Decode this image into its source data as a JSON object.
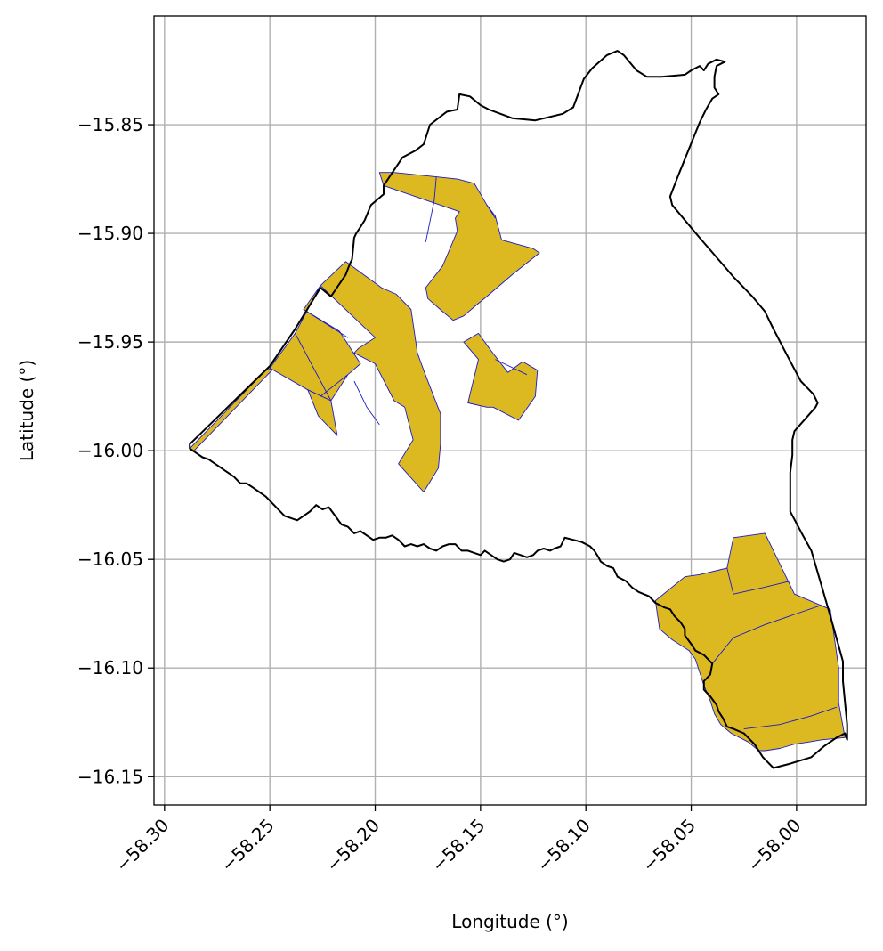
{
  "chart_data": {
    "type": "map",
    "title": "",
    "xlabel": "Longitude (°)",
    "ylabel": "Latitude (°)",
    "xlim": [
      -58.305,
      -57.967
    ],
    "ylim": [
      -16.163,
      -15.8
    ],
    "x_ticks": [
      {
        "value": -58.3,
        "label": "−58.30"
      },
      {
        "value": -58.25,
        "label": "−58.25"
      },
      {
        "value": -58.2,
        "label": "−58.20"
      },
      {
        "value": -58.15,
        "label": "−58.15"
      },
      {
        "value": -58.1,
        "label": "−58.10"
      },
      {
        "value": -58.05,
        "label": "−58.05"
      },
      {
        "value": -58.0,
        "label": "−58.00"
      }
    ],
    "y_ticks": [
      {
        "value": -15.85,
        "label": "−15.85"
      },
      {
        "value": -15.9,
        "label": "−15.90"
      },
      {
        "value": -15.95,
        "label": "−15.95"
      },
      {
        "value": -16.0,
        "label": "−16.00"
      },
      {
        "value": -16.05,
        "label": "−16.05"
      },
      {
        "value": -16.1,
        "label": "−16.10"
      },
      {
        "value": -16.15,
        "label": "−16.15"
      }
    ],
    "grid": true,
    "colors": {
      "boundary": "#000000",
      "parcel_fill": "#DDB921",
      "parcel_edge": "#1a1acc",
      "grid": "#b0b0b0"
    },
    "boundary": [
      [
        -58.288,
        -15.997
      ],
      [
        -58.25,
        -15.961
      ],
      [
        -58.238,
        -15.944
      ],
      [
        -58.226,
        -15.925
      ],
      [
        -58.221,
        -15.929
      ],
      [
        -58.214,
        -15.919
      ],
      [
        -58.212,
        -15.914
      ],
      [
        -58.211,
        -15.912
      ],
      [
        -58.21,
        -15.902
      ],
      [
        -58.209,
        -15.9
      ],
      [
        -58.207,
        -15.897
      ],
      [
        -58.205,
        -15.894
      ],
      [
        -58.202,
        -15.887
      ],
      [
        -58.196,
        -15.882
      ],
      [
        -58.196,
        -15.878
      ],
      [
        -58.187,
        -15.865
      ],
      [
        -58.181,
        -15.862
      ],
      [
        -58.177,
        -15.859
      ],
      [
        -58.174,
        -15.85
      ],
      [
        -58.166,
        -15.844
      ],
      [
        -58.161,
        -15.843
      ],
      [
        -58.16,
        -15.836
      ],
      [
        -58.155,
        -15.837
      ],
      [
        -58.15,
        -15.841
      ],
      [
        -58.146,
        -15.843
      ],
      [
        -58.135,
        -15.847
      ],
      [
        -58.124,
        -15.848
      ],
      [
        -58.111,
        -15.845
      ],
      [
        -58.106,
        -15.842
      ],
      [
        -58.101,
        -15.829
      ],
      [
        -58.097,
        -15.824
      ],
      [
        -58.09,
        -15.818
      ],
      [
        -58.085,
        -15.816
      ],
      [
        -58.082,
        -15.818
      ],
      [
        -58.076,
        -15.825
      ],
      [
        -58.071,
        -15.828
      ],
      [
        -58.064,
        -15.828
      ],
      [
        -58.053,
        -15.827
      ],
      [
        -58.05,
        -15.825
      ],
      [
        -58.046,
        -15.823
      ],
      [
        -58.044,
        -15.825
      ],
      [
        -58.042,
        -15.822
      ],
      [
        -58.038,
        -15.82
      ],
      [
        -58.034,
        -15.821
      ],
      [
        -58.038,
        -15.823
      ],
      [
        -58.039,
        -15.828
      ],
      [
        -58.039,
        -15.833
      ],
      [
        -58.037,
        -15.836
      ],
      [
        -58.04,
        -15.838
      ],
      [
        -58.043,
        -15.843
      ],
      [
        -58.046,
        -15.849
      ],
      [
        -58.056,
        -15.873
      ],
      [
        -58.06,
        -15.883
      ],
      [
        -58.059,
        -15.887
      ],
      [
        -58.046,
        -15.902
      ],
      [
        -58.03,
        -15.92
      ],
      [
        -58.021,
        -15.929
      ],
      [
        -58.015,
        -15.936
      ],
      [
        -58.013,
        -15.94
      ],
      [
        -58.011,
        -15.944
      ],
      [
        -58.004,
        -15.957
      ],
      [
        -57.998,
        -15.968
      ],
      [
        -57.992,
        -15.974
      ],
      [
        -57.99,
        -15.978
      ],
      [
        -57.991,
        -15.98
      ],
      [
        -58.001,
        -15.991
      ],
      [
        -58.002,
        -15.995
      ],
      [
        -58.002,
        -16.002
      ],
      [
        -58.003,
        -16.01
      ],
      [
        -58.003,
        -16.014
      ],
      [
        -58.003,
        -16.021
      ],
      [
        -58.003,
        -16.028
      ],
      [
        -57.997,
        -16.039
      ],
      [
        -57.993,
        -16.046
      ],
      [
        -57.984,
        -16.076
      ],
      [
        -57.978,
        -16.097
      ],
      [
        -57.978,
        -16.106
      ],
      [
        -57.976,
        -16.126
      ],
      [
        -57.976,
        -16.133
      ],
      [
        -57.977,
        -16.13
      ],
      [
        -57.981,
        -16.132
      ],
      [
        -57.987,
        -16.136
      ],
      [
        -57.993,
        -16.141
      ],
      [
        -58.003,
        -16.144
      ],
      [
        -58.011,
        -16.146
      ],
      [
        -58.016,
        -16.141
      ],
      [
        -58.02,
        -16.135
      ],
      [
        -58.025,
        -16.13
      ],
      [
        -58.03,
        -16.128
      ],
      [
        -58.033,
        -16.127
      ],
      [
        -58.035,
        -16.123
      ],
      [
        -58.037,
        -16.12
      ],
      [
        -58.038,
        -16.117
      ],
      [
        -58.041,
        -16.113
      ],
      [
        -58.044,
        -16.11
      ],
      [
        -58.044,
        -16.106
      ],
      [
        -58.041,
        -16.103
      ],
      [
        -58.04,
        -16.098
      ],
      [
        -58.044,
        -16.094
      ],
      [
        -58.048,
        -16.092
      ],
      [
        -58.05,
        -16.089
      ],
      [
        -58.053,
        -16.085
      ],
      [
        -58.053,
        -16.082
      ],
      [
        -58.055,
        -16.079
      ],
      [
        -58.058,
        -16.076
      ],
      [
        -58.06,
        -16.073
      ],
      [
        -58.063,
        -16.072
      ],
      [
        -58.067,
        -16.07
      ],
      [
        -58.07,
        -16.067
      ],
      [
        -58.075,
        -16.065
      ],
      [
        -58.078,
        -16.063
      ],
      [
        -58.081,
        -16.06
      ],
      [
        -58.085,
        -16.058
      ],
      [
        -58.087,
        -16.054
      ],
      [
        -58.09,
        -16.053
      ],
      [
        -58.093,
        -16.051
      ],
      [
        -58.094,
        -16.049
      ],
      [
        -58.096,
        -16.046
      ],
      [
        -58.098,
        -16.044
      ],
      [
        -58.102,
        -16.042
      ],
      [
        -58.106,
        -16.041
      ],
      [
        -58.11,
        -16.04
      ],
      [
        -58.112,
        -16.044
      ],
      [
        -58.115,
        -16.045
      ],
      [
        -58.117,
        -16.046
      ],
      [
        -58.12,
        -16.045
      ],
      [
        -58.123,
        -16.046
      ],
      [
        -58.125,
        -16.048
      ],
      [
        -58.128,
        -16.049
      ],
      [
        -58.131,
        -16.048
      ],
      [
        -58.134,
        -16.047
      ],
      [
        -58.136,
        -16.05
      ],
      [
        -58.139,
        -16.051
      ],
      [
        -58.142,
        -16.05
      ],
      [
        -58.145,
        -16.048
      ],
      [
        -58.148,
        -16.046
      ],
      [
        -58.15,
        -16.048
      ],
      [
        -58.153,
        -16.047
      ],
      [
        -58.156,
        -16.046
      ],
      [
        -58.159,
        -16.046
      ],
      [
        -58.162,
        -16.043
      ],
      [
        -58.165,
        -16.043
      ],
      [
        -58.168,
        -16.044
      ],
      [
        -58.171,
        -16.046
      ],
      [
        -58.174,
        -16.045
      ],
      [
        -58.177,
        -16.043
      ],
      [
        -58.18,
        -16.044
      ],
      [
        -58.183,
        -16.043
      ],
      [
        -58.186,
        -16.044
      ],
      [
        -58.189,
        -16.041
      ],
      [
        -58.192,
        -16.039
      ],
      [
        -58.195,
        -16.04
      ],
      [
        -58.198,
        -16.04
      ],
      [
        -58.201,
        -16.041
      ],
      [
        -58.204,
        -16.039
      ],
      [
        -58.207,
        -16.037
      ],
      [
        -58.21,
        -16.038
      ],
      [
        -58.213,
        -16.035
      ],
      [
        -58.216,
        -16.034
      ],
      [
        -58.219,
        -16.03
      ],
      [
        -58.222,
        -16.026
      ],
      [
        -58.225,
        -16.027
      ],
      [
        -58.228,
        -16.025
      ],
      [
        -58.231,
        -16.028
      ],
      [
        -58.234,
        -16.03
      ],
      [
        -58.237,
        -16.032
      ],
      [
        -58.24,
        -16.031
      ],
      [
        -58.243,
        -16.03
      ],
      [
        -58.246,
        -16.027
      ],
      [
        -58.249,
        -16.024
      ],
      [
        -58.252,
        -16.021
      ],
      [
        -58.255,
        -16.019
      ],
      [
        -58.258,
        -16.017
      ],
      [
        -58.261,
        -16.015
      ],
      [
        -58.264,
        -16.015
      ],
      [
        -58.267,
        -16.012
      ],
      [
        -58.27,
        -16.01
      ],
      [
        -58.273,
        -16.008
      ],
      [
        -58.276,
        -16.006
      ],
      [
        -58.279,
        -16.004
      ],
      [
        -58.282,
        -16.003
      ],
      [
        -58.285,
        -16.001
      ],
      [
        -58.288,
        -15.999
      ]
    ],
    "parcels": [
      {
        "points": [
          [
            -58.288,
            -15.999
          ],
          [
            -58.251,
            -15.962
          ],
          [
            -58.249,
            -15.963
          ],
          [
            -58.286,
            -16.0
          ]
        ]
      },
      {
        "points": [
          [
            -58.226,
            -15.924
          ],
          [
            -58.214,
            -15.913
          ],
          [
            -58.197,
            -15.925
          ],
          [
            -58.19,
            -15.928
          ],
          [
            -58.183,
            -15.935
          ],
          [
            -58.18,
            -15.955
          ],
          [
            -58.177,
            -15.963
          ],
          [
            -58.173,
            -15.973
          ],
          [
            -58.169,
            -15.983
          ],
          [
            -58.169,
            -15.997
          ],
          [
            -58.17,
            -16.008
          ],
          [
            -58.177,
            -16.019
          ],
          [
            -58.189,
            -16.006
          ],
          [
            -58.182,
            -15.995
          ],
          [
            -58.186,
            -15.98
          ],
          [
            -58.191,
            -15.977
          ],
          [
            -58.2,
            -15.96
          ],
          [
            -58.21,
            -15.955
          ],
          [
            -58.208,
            -15.953
          ],
          [
            -58.2,
            -15.948
          ],
          [
            -58.226,
            -15.924
          ]
        ]
      },
      {
        "points": [
          [
            -58.226,
            -15.924
          ],
          [
            -58.234,
            -15.935
          ],
          [
            -58.217,
            -15.945
          ],
          [
            -58.207,
            -15.96
          ],
          [
            -58.213,
            -15.965
          ],
          [
            -58.221,
            -15.977
          ],
          [
            -58.24,
            -15.958
          ],
          [
            -58.238,
            -15.946
          ],
          [
            -58.226,
            -15.924
          ]
        ]
      },
      {
        "points": [
          [
            -58.238,
            -15.946
          ],
          [
            -58.25,
            -15.962
          ],
          [
            -58.232,
            -15.972
          ],
          [
            -58.221,
            -15.977
          ],
          [
            -58.238,
            -15.946
          ]
        ]
      },
      {
        "points": [
          [
            -58.221,
            -15.977
          ],
          [
            -58.232,
            -15.972
          ],
          [
            -58.227,
            -15.984
          ],
          [
            -58.218,
            -15.993
          ],
          [
            -58.221,
            -15.977
          ]
        ]
      },
      {
        "points": [
          [
            -58.196,
            -15.878
          ],
          [
            -58.198,
            -15.872
          ],
          [
            -58.191,
            -15.872
          ],
          [
            -58.171,
            -15.874
          ],
          [
            -58.161,
            -15.875
          ],
          [
            -58.153,
            -15.877
          ],
          [
            -58.147,
            -15.887
          ],
          [
            -58.143,
            -15.892
          ],
          [
            -58.14,
            -15.903
          ],
          [
            -58.125,
            -15.907
          ],
          [
            -58.122,
            -15.909
          ],
          [
            -58.135,
            -15.919
          ],
          [
            -58.147,
            -15.929
          ],
          [
            -58.152,
            -15.933
          ],
          [
            -58.158,
            -15.938
          ],
          [
            -58.163,
            -15.94
          ],
          [
            -58.168,
            -15.936
          ],
          [
            -58.175,
            -15.93
          ],
          [
            -58.176,
            -15.925
          ],
          [
            -58.168,
            -15.915
          ],
          [
            -58.161,
            -15.899
          ],
          [
            -58.162,
            -15.893
          ],
          [
            -58.16,
            -15.89
          ],
          [
            -58.196,
            -15.878
          ]
        ]
      },
      {
        "points": [
          [
            -58.151,
            -15.946
          ],
          [
            -58.145,
            -15.954
          ],
          [
            -58.137,
            -15.964
          ],
          [
            -58.13,
            -15.959
          ],
          [
            -58.123,
            -15.963
          ],
          [
            -58.124,
            -15.975
          ],
          [
            -58.132,
            -15.986
          ],
          [
            -58.144,
            -15.98
          ],
          [
            -58.147,
            -15.98
          ],
          [
            -58.156,
            -15.978
          ],
          [
            -58.151,
            -15.958
          ],
          [
            -58.158,
            -15.95
          ],
          [
            -58.151,
            -15.946
          ]
        ]
      },
      {
        "points": [
          [
            -58.067,
            -16.069
          ],
          [
            -58.053,
            -16.058
          ],
          [
            -58.046,
            -16.057
          ],
          [
            -58.033,
            -16.054
          ],
          [
            -58.03,
            -16.04
          ],
          [
            -58.015,
            -16.038
          ],
          [
            -58.001,
            -16.066
          ],
          [
            -57.984,
            -16.073
          ],
          [
            -57.98,
            -16.1
          ],
          [
            -57.98,
            -16.116
          ],
          [
            -57.977,
            -16.132
          ],
          [
            -57.988,
            -16.133
          ],
          [
            -57.994,
            -16.134
          ],
          [
            -58.001,
            -16.135
          ],
          [
            -58.008,
            -16.137
          ],
          [
            -58.015,
            -16.138
          ],
          [
            -58.018,
            -16.138
          ],
          [
            -58.023,
            -16.134
          ],
          [
            -58.031,
            -16.13
          ],
          [
            -58.036,
            -16.126
          ],
          [
            -58.039,
            -16.121
          ],
          [
            -58.041,
            -16.115
          ],
          [
            -58.044,
            -16.108
          ],
          [
            -58.048,
            -16.096
          ],
          [
            -58.051,
            -16.092
          ],
          [
            -58.059,
            -16.087
          ],
          [
            -58.065,
            -16.082
          ],
          [
            -58.067,
            -16.069
          ]
        ]
      }
    ],
    "parcel_lines": [
      [
        [
          -58.234,
          -15.935
        ],
        [
          -58.213,
          -15.948
        ]
      ],
      [
        [
          -58.226,
          -15.975
        ],
        [
          -58.213,
          -15.965
        ]
      ],
      [
        [
          -58.21,
          -15.968
        ],
        [
          -58.204,
          -15.98
        ],
        [
          -58.198,
          -15.988
        ]
      ],
      [
        [
          -58.171,
          -15.874
        ],
        [
          -58.172,
          -15.885
        ],
        [
          -58.176,
          -15.904
        ]
      ],
      [
        [
          -58.147,
          -15.887
        ],
        [
          -58.143,
          -15.893
        ]
      ],
      [
        [
          -58.143,
          -15.958
        ],
        [
          -58.128,
          -15.965
        ]
      ],
      [
        [
          -58.033,
          -16.054
        ],
        [
          -58.03,
          -16.066
        ],
        [
          -58.016,
          -16.063
        ],
        [
          -58.003,
          -16.06
        ]
      ],
      [
        [
          -58.04,
          -16.098
        ],
        [
          -58.03,
          -16.086
        ],
        [
          -58.015,
          -16.08
        ],
        [
          -57.988,
          -16.071
        ]
      ],
      [
        [
          -58.025,
          -16.128
        ],
        [
          -58.008,
          -16.126
        ],
        [
          -57.993,
          -16.122
        ],
        [
          -57.981,
          -16.118
        ]
      ]
    ]
  }
}
